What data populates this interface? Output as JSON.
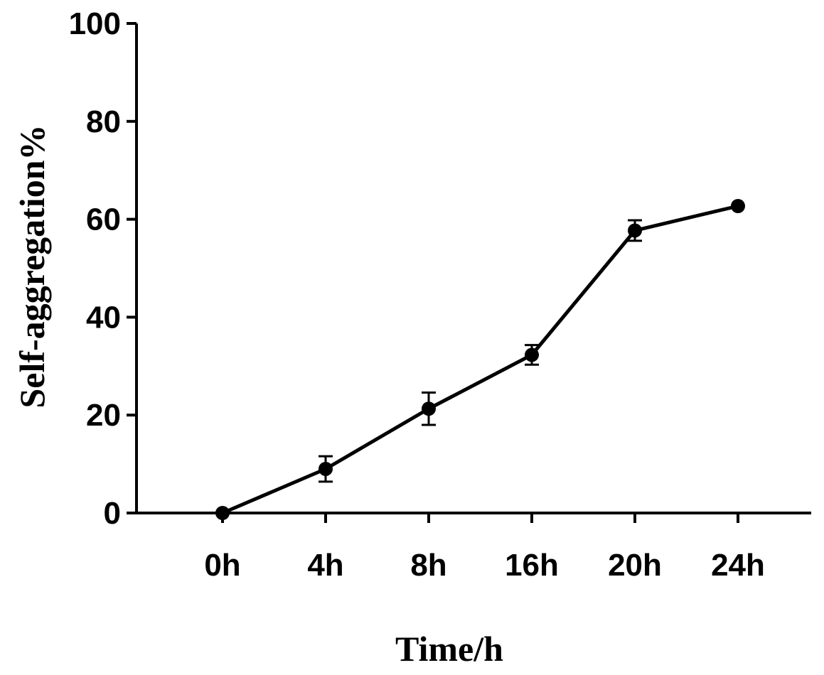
{
  "chart_data": {
    "type": "line",
    "title": "",
    "xlabel": "Time/h",
    "ylabel": "Self-aggregation%",
    "categories": [
      "0h",
      "4h",
      "8h",
      "16h",
      "20h",
      "24h"
    ],
    "ylim": [
      0,
      100
    ],
    "yticks": [
      0,
      20,
      40,
      60,
      80,
      100
    ],
    "grid": false,
    "series": [
      {
        "values": [
          0,
          9.0,
          21.3,
          32.3,
          57.7,
          62.7
        ],
        "error": [
          0,
          2.6,
          3.3,
          2.0,
          2.1,
          0
        ],
        "color": "#000000"
      }
    ]
  }
}
